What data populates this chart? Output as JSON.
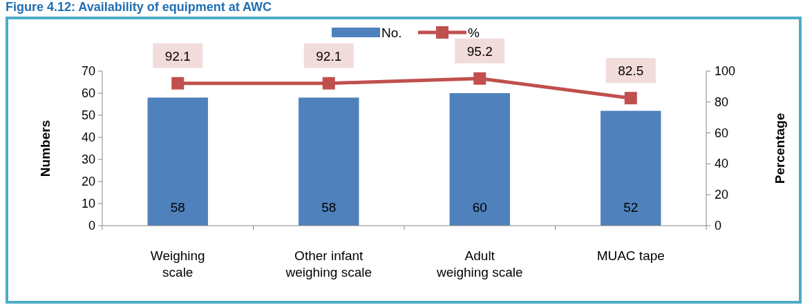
{
  "chart_data": {
    "type": "bar",
    "title": "Figure 4.12: Availability of equipment at AWC",
    "categories": [
      "Weighing scale",
      "Other infant weighing scale",
      "Adult weighing scale",
      "MUAC tape"
    ],
    "series": [
      {
        "name": "No.",
        "color": "#4f81bd",
        "values": [
          58,
          58,
          60,
          52
        ]
      },
      {
        "name": "%",
        "type": "line",
        "axis": "y2",
        "color": "#c0504d",
        "values": [
          92.1,
          92.1,
          95.2,
          82.5
        ],
        "marker": "square"
      }
    ],
    "ylabel": "Numbers",
    "y2label": "Percentage",
    "ylim": [
      0,
      70
    ],
    "yticks": [
      0,
      10,
      20,
      30,
      40,
      50,
      60,
      70
    ],
    "y2lim": [
      0,
      100
    ],
    "y2ticks": [
      0,
      20,
      40,
      60,
      80,
      100
    ],
    "data_labels": true,
    "legend": "top",
    "grid": false
  }
}
